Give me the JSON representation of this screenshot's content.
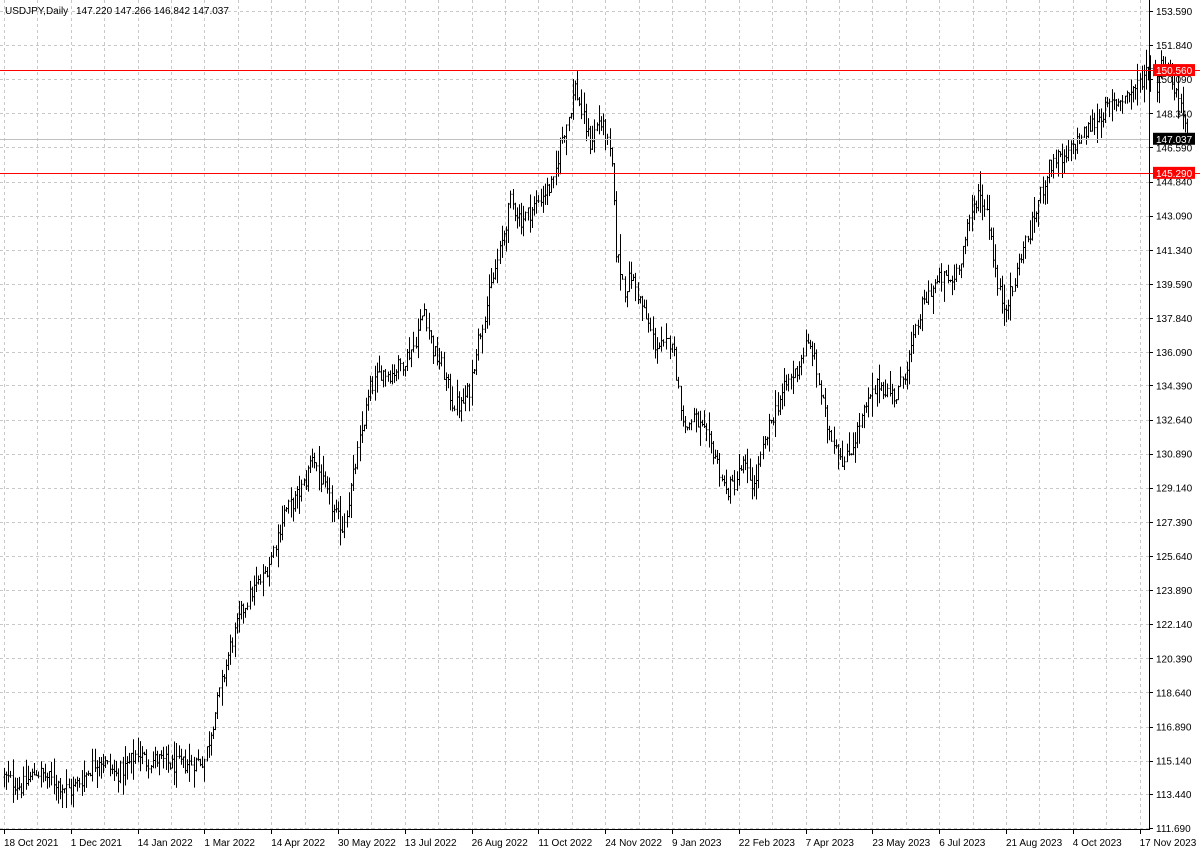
{
  "header": {
    "symbol": "USDJPY,Daily",
    "ohlc": "147.220 147.266 146.842 147.037"
  },
  "colors": {
    "background": "#ffffff",
    "grid": "#c8c8c8",
    "bars": "#000000",
    "level_lines": "#ff0000",
    "current_price_line": "#c0c0c0",
    "current_price_tag": "#000000"
  },
  "chart_data": {
    "type": "ohlc",
    "title": "USDJPY,Daily",
    "xlabel": "",
    "ylabel": "",
    "ylim": [
      111.69,
      153.59
    ],
    "grid": true,
    "y_ticks": [
      "153.590",
      "151.840",
      "150.090",
      "148.340",
      "146.590",
      "144.840",
      "143.090",
      "141.340",
      "139.590",
      "137.840",
      "136.090",
      "134.390",
      "132.640",
      "130.890",
      "129.140",
      "127.390",
      "125.640",
      "123.890",
      "122.140",
      "120.390",
      "118.640",
      "116.890",
      "115.140",
      "113.440",
      "111.690"
    ],
    "x_ticks": [
      "18 Oct 2021",
      "1 Dec 2021",
      "14 Jan 2022",
      "1 Mar 2022",
      "14 Apr 2022",
      "30 May 2022",
      "13 Jul 2022",
      "26 Aug 2022",
      "11 Oct 2022",
      "24 Nov 2022",
      "9 Jan 2023",
      "22 Feb 2023",
      "7 Apr 2023",
      "23 May 2023",
      "6 Jul 2023",
      "21 Aug 2023",
      "4 Oct 2023",
      "17 Nov 2023"
    ],
    "horizontal_levels": [
      {
        "label": "150.560",
        "value": 150.56
      },
      {
        "label": "145.290",
        "value": 145.29
      }
    ],
    "current_price": {
      "label": "147.037",
      "value": 147.037
    },
    "bars_per_tick": 31,
    "anchors": [
      [
        0,
        114.3
      ],
      [
        8,
        113.8
      ],
      [
        15,
        114.6
      ],
      [
        23,
        114.1
      ],
      [
        31,
        113.6
      ],
      [
        36,
        114.2
      ],
      [
        44,
        115.3
      ],
      [
        52,
        114.4
      ],
      [
        58,
        115.0
      ],
      [
        62,
        115.6
      ],
      [
        66,
        115.1
      ],
      [
        72,
        115.2
      ],
      [
        78,
        114.9
      ],
      [
        86,
        115.0
      ],
      [
        93,
        115.2
      ],
      [
        96,
        116.7
      ],
      [
        100,
        118.6
      ],
      [
        105,
        121.0
      ],
      [
        110,
        122.7
      ],
      [
        115,
        123.8
      ],
      [
        120,
        124.5
      ],
      [
        124,
        125.6
      ],
      [
        130,
        127.9
      ],
      [
        135,
        128.5
      ],
      [
        140,
        129.5
      ],
      [
        143,
        130.9
      ],
      [
        148,
        129.3
      ],
      [
        153,
        127.9
      ],
      [
        157,
        127.1
      ],
      [
        160,
        128.5
      ],
      [
        165,
        131.5
      ],
      [
        170,
        134.2
      ],
      [
        175,
        135.1
      ],
      [
        180,
        135.0
      ],
      [
        185,
        135.6
      ],
      [
        190,
        136.4
      ],
      [
        195,
        138.3
      ],
      [
        199,
        136.2
      ],
      [
        203,
        135.4
      ],
      [
        208,
        133.5
      ],
      [
        212,
        133.3
      ],
      [
        216,
        134.2
      ],
      [
        219,
        136.3
      ],
      [
        225,
        139.0
      ],
      [
        230,
        141.2
      ],
      [
        235,
        143.8
      ],
      [
        240,
        142.9
      ],
      [
        245,
        143.4
      ],
      [
        250,
        144.2
      ],
      [
        255,
        144.7
      ],
      [
        258,
        146.8
      ],
      [
        262,
        148.2
      ],
      [
        265,
        149.7
      ],
      [
        268,
        148.4
      ],
      [
        272,
        146.8
      ],
      [
        276,
        148.0
      ],
      [
        279,
        147.3
      ],
      [
        282,
        145.6
      ],
      [
        284,
        141.3
      ],
      [
        288,
        139.3
      ],
      [
        291,
        140.0
      ],
      [
        293,
        139.4
      ],
      [
        297,
        138.1
      ],
      [
        302,
        136.5
      ],
      [
        306,
        136.3
      ],
      [
        310,
        136.8
      ],
      [
        313,
        134.2
      ],
      [
        316,
        132.1
      ],
      [
        320,
        132.8
      ],
      [
        325,
        131.9
      ],
      [
        330,
        130.8
      ],
      [
        335,
        128.9
      ],
      [
        339,
        129.4
      ],
      [
        343,
        130.3
      ],
      [
        348,
        129.2
      ],
      [
        352,
        131.0
      ],
      [
        356,
        132.6
      ],
      [
        360,
        133.7
      ],
      [
        364,
        134.6
      ],
      [
        368,
        135.2
      ],
      [
        372,
        136.4
      ],
      [
        375,
        136.2
      ],
      [
        378,
        134.5
      ],
      [
        382,
        132.3
      ],
      [
        386,
        131.4
      ],
      [
        390,
        130.4
      ],
      [
        394,
        131.4
      ],
      [
        398,
        132.7
      ],
      [
        402,
        133.7
      ],
      [
        406,
        134.5
      ],
      [
        410,
        134.1
      ],
      [
        414,
        133.8
      ],
      [
        418,
        135.1
      ],
      [
        422,
        136.6
      ],
      [
        426,
        138.4
      ],
      [
        430,
        139.3
      ],
      [
        435,
        139.9
      ],
      [
        440,
        139.7
      ],
      [
        444,
        141.0
      ],
      [
        449,
        143.2
      ],
      [
        452,
        144.3
      ],
      [
        456,
        143.4
      ],
      [
        458,
        142.0
      ],
      [
        461,
        139.4
      ],
      [
        464,
        138.5
      ],
      [
        468,
        139.2
      ],
      [
        472,
        141.2
      ],
      [
        476,
        142.2
      ],
      [
        480,
        143.8
      ],
      [
        484,
        145.3
      ],
      [
        488,
        146.1
      ],
      [
        492,
        145.8
      ],
      [
        496,
        146.7
      ],
      [
        500,
        147.1
      ],
      [
        505,
        147.8
      ],
      [
        510,
        148.4
      ],
      [
        515,
        148.9
      ],
      [
        520,
        149.2
      ],
      [
        524,
        149.6
      ],
      [
        527,
        149.9
      ],
      [
        530,
        150.5
      ],
      [
        533,
        150.7
      ],
      [
        535,
        149.8
      ],
      [
        538,
        151.2
      ],
      [
        541,
        150.4
      ],
      [
        544,
        149.4
      ],
      [
        547,
        148.6
      ],
      [
        549,
        147.0
      ]
    ]
  }
}
